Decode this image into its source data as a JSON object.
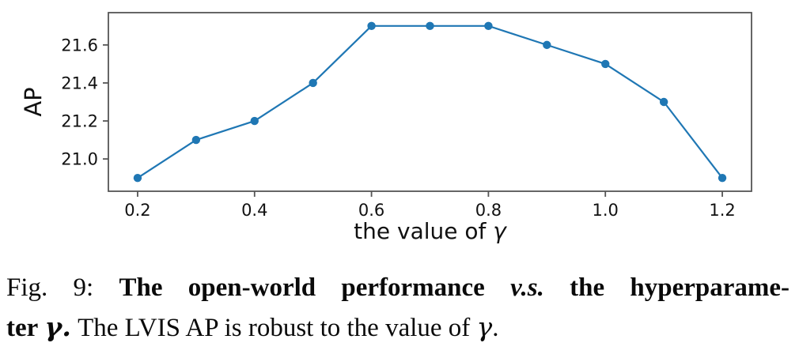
{
  "chart_data": {
    "type": "line",
    "x": [
      0.2,
      0.3,
      0.4,
      0.5,
      0.6,
      0.7,
      0.8,
      0.9,
      1.0,
      1.1,
      1.2
    ],
    "series": [
      {
        "name": "LVIS AP",
        "values": [
          20.9,
          21.1,
          21.2,
          21.4,
          21.7,
          21.7,
          21.7,
          21.6,
          21.5,
          21.3,
          20.9
        ]
      }
    ],
    "title": "",
    "xlabel": "the value of γ",
    "ylabel": "AP",
    "xlim": [
      0.15,
      1.25
    ],
    "ylim": [
      20.83,
      21.77
    ],
    "x_ticks": [
      0.2,
      0.4,
      0.6,
      0.8,
      1.0,
      1.2
    ],
    "x_tick_labels": [
      "0.2",
      "0.4",
      "0.6",
      "0.8",
      "1.0",
      "1.2"
    ],
    "y_ticks": [
      21.0,
      21.2,
      21.4,
      21.6
    ],
    "y_tick_labels": [
      "21.0",
      "21.2",
      "21.4",
      "21.6"
    ],
    "line_color": "#1f77b4",
    "marker": "circle",
    "grid": false,
    "legend_position": "none",
    "spine_color": "#555555"
  },
  "caption": {
    "fig_label": "Fig. 9:",
    "line1_bold_a": "The open-world performance",
    "line1_vs": "v.s.",
    "line1_bold_b": "the hyperparame-",
    "line2_bold": "ter",
    "line2_gamma_bold": "γ.",
    "line2_regular": "The LVIS AP is robust to the value of",
    "line2_gamma": "γ",
    "line2_period": "."
  }
}
